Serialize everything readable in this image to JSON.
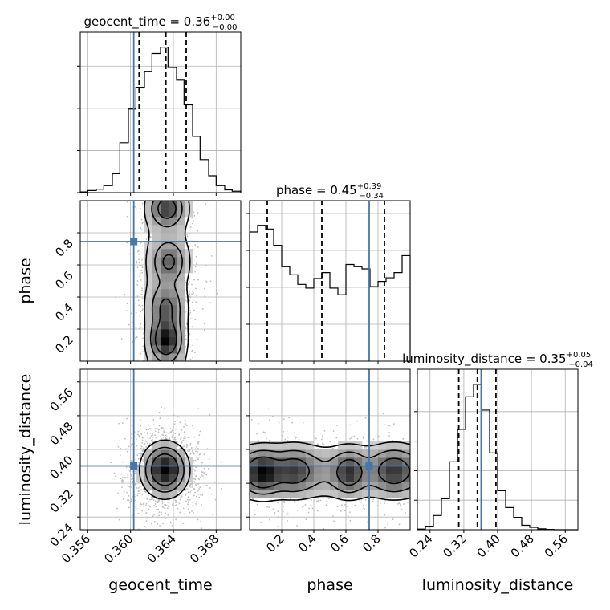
{
  "chart_data": {
    "type": "corner",
    "parameters": [
      "geocent_time",
      "phase",
      "luminosity_distance"
    ],
    "truths": {
      "geocent_time": 0.3603,
      "phase": 0.745,
      "luminosity_distance": 0.361
    },
    "marginals": [
      {
        "name": "geocent_time",
        "title_main": "geocent_time = 0.36",
        "title_plus": "+0.00",
        "title_minus": "−0.00",
        "quantiles": [
          0.3608,
          0.3633,
          0.3652
        ],
        "xlim": [
          0.3553,
          0.3703
        ],
        "edges": [
          0.3553,
          0.356,
          0.3568,
          0.3575,
          0.3583,
          0.359,
          0.3598,
          0.3605,
          0.3613,
          0.362,
          0.3628,
          0.3635,
          0.3643,
          0.365,
          0.3658,
          0.3665,
          0.3673,
          0.368,
          0.3688,
          0.3695,
          0.3703
        ],
        "counts": [
          1,
          3,
          5,
          10,
          27,
          71,
          119,
          149,
          172,
          198,
          207,
          178,
          160,
          125,
          80,
          47,
          24,
          10,
          4,
          2
        ],
        "yticks": [
          0,
          60,
          120,
          180
        ],
        "ymax": 210
      },
      {
        "name": "phase",
        "title_main": "phase = 0.45",
        "title_plus": "+0.39",
        "title_minus": "−0.34",
        "quantiles": [
          0.11,
          0.45,
          0.84
        ],
        "xlim": [
          0.0,
          1.0
        ],
        "edges": [
          0.0,
          0.05,
          0.1,
          0.15,
          0.2,
          0.25,
          0.3,
          0.35,
          0.4,
          0.45,
          0.5,
          0.55,
          0.6,
          0.65,
          0.7,
          0.75,
          0.8,
          0.85,
          0.9,
          0.95,
          1.0
        ],
        "counts": [
          175,
          184,
          179,
          157,
          128,
          117,
          104,
          99,
          112,
          120,
          99,
          90,
          131,
          128,
          125,
          101,
          108,
          113,
          120,
          143
        ],
        "yticks": [
          50,
          100,
          150,
          200
        ],
        "ymax": 200
      },
      {
        "name": "luminosity_distance",
        "title_main": "luminosity_distance = 0.35",
        "title_plus": "+0.05",
        "title_minus": "−0.04",
        "quantiles": [
          0.308,
          0.352,
          0.396
        ],
        "xlim": [
          0.21,
          0.59
        ],
        "edges": [
          0.21,
          0.229,
          0.248,
          0.267,
          0.286,
          0.305,
          0.324,
          0.343,
          0.362,
          0.381,
          0.4,
          0.419,
          0.438,
          0.457,
          0.476,
          0.495,
          0.514,
          0.533,
          0.552,
          0.571,
          0.59
        ],
        "counts": [
          2,
          12,
          48,
          105,
          230,
          340,
          450,
          492,
          405,
          260,
          132,
          75,
          42,
          15,
          8,
          3,
          1,
          0,
          0,
          0
        ],
        "yticks": [
          100,
          200,
          300,
          400
        ],
        "ymax": 500
      }
    ],
    "axes": [
      {
        "name": "geocent_time",
        "range": [
          0.3553,
          0.3703
        ],
        "ticks": [
          0.356,
          0.36,
          0.364,
          0.368
        ],
        "tick_labels": [
          "0.356",
          "0.360",
          "0.364",
          "0.368"
        ]
      },
      {
        "name": "phase",
        "range": [
          0.0,
          1.0
        ],
        "ticks": [
          0.2,
          0.4,
          0.6,
          0.8
        ],
        "tick_labels": [
          "0.2",
          "0.4",
          "0.6",
          "0.8"
        ]
      },
      {
        "name": "luminosity_distance",
        "range": [
          0.21,
          0.59
        ],
        "ticks": [
          0.24,
          0.32,
          0.4,
          0.48,
          0.56
        ],
        "tick_labels": [
          "0.24",
          "0.32",
          "0.40",
          "0.48",
          "0.56"
        ]
      }
    ],
    "row_labels": [
      "phase",
      "luminosity_distance"
    ],
    "col_labels": [
      "geocent_time",
      "phase",
      "luminosity_distance"
    ],
    "grid": true,
    "colors": {
      "truth": "#4477aa",
      "hist": "#000000",
      "grid": "#b0b0b0"
    },
    "joint_densities": [
      {
        "x_param": "geocent_time",
        "y_param": "phase",
        "blobs": [
          {
            "x": 0.3633,
            "y": 0.13,
            "sx": 0.0008,
            "sy": 0.07,
            "w": 1.0
          },
          {
            "x": 0.3633,
            "y": 0.33,
            "sx": 0.0009,
            "sy": 0.09,
            "w": 0.55
          },
          {
            "x": 0.3636,
            "y": 0.62,
            "sx": 0.0009,
            "sy": 0.07,
            "w": 0.55
          },
          {
            "x": 0.3634,
            "y": 0.95,
            "sx": 0.0009,
            "sy": 0.06,
            "w": 0.75
          }
        ],
        "base": 0.25,
        "base_sx": 0.0016,
        "base_sy": 2.0
      },
      {
        "x_param": "geocent_time",
        "y_param": "luminosity_distance",
        "blobs": [
          {
            "x": 0.3632,
            "y": 0.352,
            "sx": 0.00115,
            "sy": 0.034,
            "w": 1.0
          }
        ],
        "base": 0.0,
        "base_sx": 0.001,
        "base_sy": 1.0
      },
      {
        "x_param": "phase",
        "y_param": "luminosity_distance",
        "blobs": [
          {
            "x": 0.08,
            "y": 0.345,
            "sx": 0.07,
            "sy": 0.03,
            "w": 1.0
          },
          {
            "x": 0.28,
            "y": 0.35,
            "sx": 0.08,
            "sy": 0.032,
            "w": 0.65
          },
          {
            "x": 0.62,
            "y": 0.345,
            "sx": 0.06,
            "sy": 0.03,
            "w": 0.75
          },
          {
            "x": 0.9,
            "y": 0.35,
            "sx": 0.08,
            "sy": 0.032,
            "w": 0.7
          }
        ],
        "base": 0.45,
        "base_sx": 3.0,
        "base_sy": 0.04
      }
    ]
  }
}
